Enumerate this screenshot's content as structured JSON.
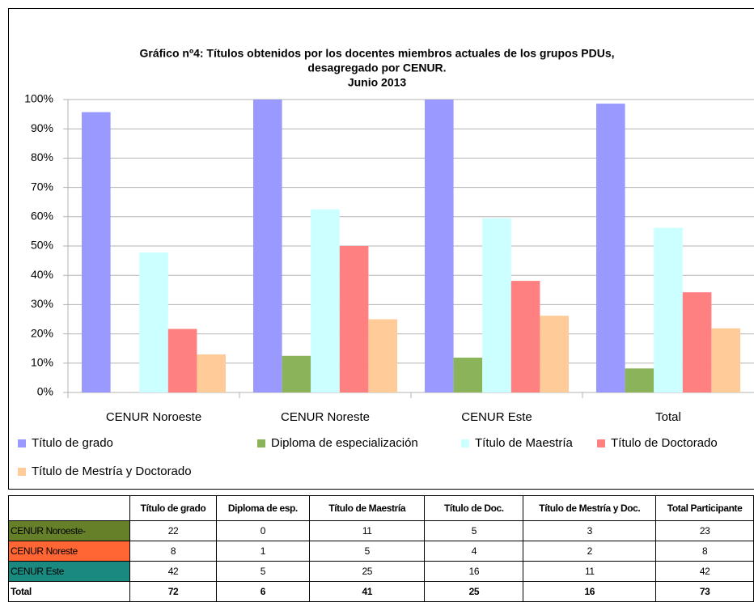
{
  "chart_data": {
    "type": "bar",
    "title": [
      "Gráfico nº4: Títulos obtenidos por los docentes miembros actuales de los grupos PDUs,",
      "desagregado por CENUR.",
      "Junio 2013"
    ],
    "categories": [
      "CENUR Noroeste",
      "CENUR Noreste",
      "CENUR Este",
      "Total"
    ],
    "series": [
      {
        "name": "Título de grado",
        "color": "#9999ff",
        "values": [
          95.7,
          100,
          100,
          98.6
        ]
      },
      {
        "name": "Diploma de especialización",
        "color": "#8bb35a",
        "values": [
          0,
          12.5,
          11.9,
          8.2
        ]
      },
      {
        "name": "Título de Maestría",
        "color": "#ccffff",
        "values": [
          47.8,
          62.5,
          59.5,
          56.2
        ]
      },
      {
        "name": "Título de Doctorado",
        "color": "#ff8080",
        "values": [
          21.7,
          50,
          38.1,
          34.2
        ]
      },
      {
        "name": "Título de Mestría y Doctorado",
        "color": "#ffcc99",
        "values": [
          13,
          25,
          26.2,
          21.9
        ]
      }
    ],
    "ylim": [
      0,
      100
    ],
    "yticks": [
      {
        "value": 0,
        "label": "0%"
      },
      {
        "value": 10,
        "label": "10%"
      },
      {
        "value": 20,
        "label": "20%"
      },
      {
        "value": 30,
        "label": "30%"
      },
      {
        "value": 40,
        "label": "40%"
      },
      {
        "value": 50,
        "label": "50%"
      },
      {
        "value": 60,
        "label": "60%"
      },
      {
        "value": 70,
        "label": "70%"
      },
      {
        "value": 80,
        "label": "80%"
      },
      {
        "value": 90,
        "label": "90%"
      },
      {
        "value": 100,
        "label": "100%"
      }
    ],
    "grid": true
  },
  "table": {
    "columns": [
      "Título de grado",
      "Diploma de esp.",
      "Título de Maestría",
      "Título de Doc.",
      "Título de Mestría y Doc.",
      "Total Participante"
    ],
    "rows": [
      {
        "label": "CENUR Noroeste-",
        "color": "#66802a",
        "values": [
          "22",
          "0",
          "11",
          "5",
          "3",
          "23"
        ]
      },
      {
        "label": "CENUR Noreste",
        "color": "#ff6633",
        "values": [
          "8",
          "1",
          "5",
          "4",
          "2",
          "8"
        ]
      },
      {
        "label": "CENUR Este",
        "color": "#1a8a80",
        "values": [
          "42",
          "5",
          "25",
          "16",
          "11",
          "42"
        ]
      },
      {
        "label": "Total",
        "values": [
          "72",
          "6",
          "41",
          "25",
          "16",
          "73"
        ]
      }
    ]
  }
}
